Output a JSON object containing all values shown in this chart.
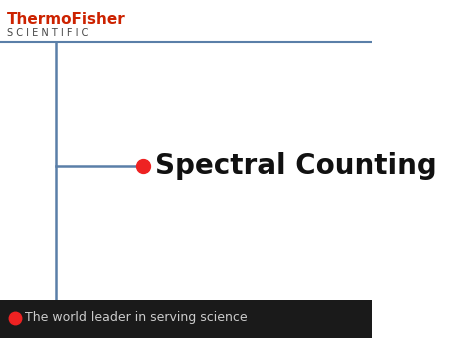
{
  "title": "Spectral Counting",
  "title_fontsize": 20,
  "title_fontweight": "bold",
  "bg_color": "#ffffff",
  "footer_bg_color": "#1a1a1a",
  "header_line_color": "#5a7fa8",
  "vertical_line_color": "#5a7fa8",
  "horizontal_line_color": "#5a7fa8",
  "dot_color": "#ee2222",
  "footer_dot_color": "#ee2222",
  "thermo_text": "ThermoFisher",
  "scientific_text": "S C I E N T I F I C",
  "thermo_color": "#cc2200",
  "footer_text": "The world leader in serving science",
  "footer_text_color": "#cccccc",
  "footer_fontsize": 9,
  "header_text_fontsize": 11
}
